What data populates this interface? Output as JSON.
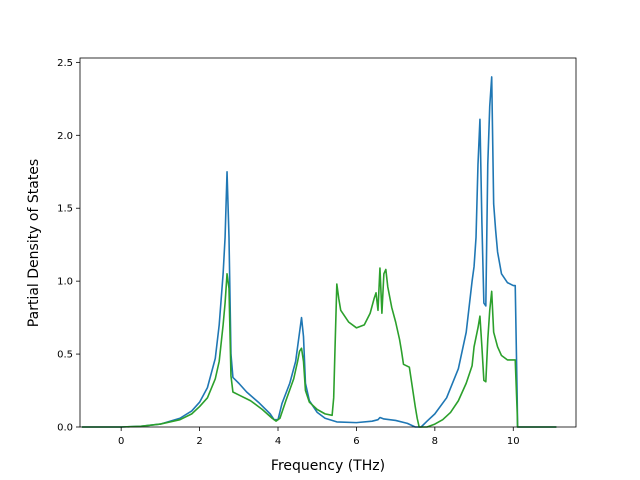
{
  "chart_data": {
    "type": "line",
    "xlabel": "Frequency (THz)",
    "ylabel": "Partial Density of States",
    "xlim": [
      -1.05,
      11.6
    ],
    "ylim": [
      0,
      2.53
    ],
    "xticks": [
      0,
      2,
      4,
      6,
      8,
      10
    ],
    "yticks": [
      0.0,
      0.5,
      1.0,
      1.5,
      2.0,
      2.5
    ],
    "xtick_labels": [
      "0",
      "2",
      "4",
      "6",
      "8",
      "10"
    ],
    "ytick_labels": [
      "0.0",
      "0.5",
      "1.0",
      "1.5",
      "2.0",
      "2.5"
    ],
    "grid": false,
    "legend": "none",
    "series": [
      {
        "color": "#1f77b4",
        "x": [
          -1.0,
          -0.5,
          0.0,
          0.5,
          1.0,
          1.5,
          1.8,
          2.0,
          2.2,
          2.4,
          2.5,
          2.6,
          2.65,
          2.7,
          2.75,
          2.8,
          2.85,
          3.0,
          3.2,
          3.5,
          3.8,
          3.9,
          4.0,
          4.1,
          4.3,
          4.45,
          4.55,
          4.6,
          4.65,
          4.7,
          4.8,
          5.0,
          5.2,
          5.5,
          6.0,
          6.4,
          6.55,
          6.6,
          6.7,
          7.0,
          7.3,
          7.5,
          7.65,
          7.8,
          8.0,
          8.3,
          8.6,
          8.8,
          8.95,
          9.0,
          9.05,
          9.1,
          9.15,
          9.2,
          9.25,
          9.3,
          9.35,
          9.4,
          9.45,
          9.5,
          9.55,
          9.6,
          9.7,
          9.85,
          10.0,
          10.05,
          10.1,
          10.11,
          10.5,
          11.1
        ],
        "y": [
          0.0,
          0.0,
          0.0,
          0.005,
          0.02,
          0.06,
          0.11,
          0.17,
          0.27,
          0.47,
          0.7,
          1.05,
          1.3,
          1.75,
          1.3,
          0.5,
          0.34,
          0.3,
          0.24,
          0.17,
          0.09,
          0.05,
          0.05,
          0.16,
          0.3,
          0.45,
          0.65,
          0.75,
          0.62,
          0.3,
          0.18,
          0.1,
          0.06,
          0.035,
          0.03,
          0.04,
          0.05,
          0.065,
          0.055,
          0.045,
          0.025,
          0.0,
          0.0,
          0.04,
          0.09,
          0.2,
          0.4,
          0.65,
          1.0,
          1.1,
          1.3,
          1.8,
          2.11,
          1.4,
          0.85,
          0.83,
          1.8,
          2.2,
          2.4,
          1.53,
          1.35,
          1.2,
          1.05,
          0.99,
          0.97,
          0.97,
          0.2,
          0.0,
          0.0,
          0.0
        ]
      },
      {
        "color": "#2ca02c",
        "x": [
          -1.0,
          -0.5,
          0.0,
          0.5,
          1.0,
          1.5,
          1.8,
          2.0,
          2.2,
          2.4,
          2.5,
          2.6,
          2.65,
          2.7,
          2.75,
          2.8,
          2.85,
          3.0,
          3.3,
          3.6,
          3.85,
          3.95,
          4.05,
          4.2,
          4.4,
          4.5,
          4.55,
          4.6,
          4.65,
          4.7,
          4.8,
          5.0,
          5.2,
          5.38,
          5.42,
          5.45,
          5.5,
          5.55,
          5.6,
          5.8,
          6.0,
          6.2,
          6.35,
          6.45,
          6.5,
          6.55,
          6.6,
          6.65,
          6.7,
          6.75,
          6.8,
          6.9,
          7.0,
          7.1,
          7.15,
          7.2,
          7.35,
          7.5,
          7.55,
          7.6,
          7.8,
          8.0,
          8.2,
          8.4,
          8.6,
          8.8,
          8.95,
          9.0,
          9.1,
          9.15,
          9.2,
          9.25,
          9.3,
          9.35,
          9.4,
          9.45,
          9.5,
          9.6,
          9.7,
          9.85,
          10.0,
          10.05,
          10.1,
          10.11,
          10.5,
          11.1
        ],
        "y": [
          0.0,
          0.0,
          0.0,
          0.005,
          0.02,
          0.05,
          0.09,
          0.14,
          0.2,
          0.33,
          0.45,
          0.7,
          0.85,
          1.05,
          0.95,
          0.35,
          0.24,
          0.22,
          0.18,
          0.12,
          0.06,
          0.04,
          0.06,
          0.18,
          0.33,
          0.45,
          0.52,
          0.54,
          0.45,
          0.25,
          0.17,
          0.12,
          0.09,
          0.08,
          0.2,
          0.5,
          0.98,
          0.88,
          0.8,
          0.72,
          0.68,
          0.7,
          0.78,
          0.88,
          0.92,
          0.8,
          1.09,
          0.78,
          1.05,
          1.08,
          0.96,
          0.82,
          0.72,
          0.6,
          0.52,
          0.43,
          0.41,
          0.14,
          0.06,
          0.0,
          0.0,
          0.02,
          0.05,
          0.1,
          0.18,
          0.3,
          0.42,
          0.55,
          0.68,
          0.76,
          0.55,
          0.32,
          0.31,
          0.6,
          0.8,
          0.93,
          0.65,
          0.55,
          0.49,
          0.46,
          0.46,
          0.46,
          0.1,
          0.0,
          0.0,
          0.0
        ]
      }
    ]
  }
}
